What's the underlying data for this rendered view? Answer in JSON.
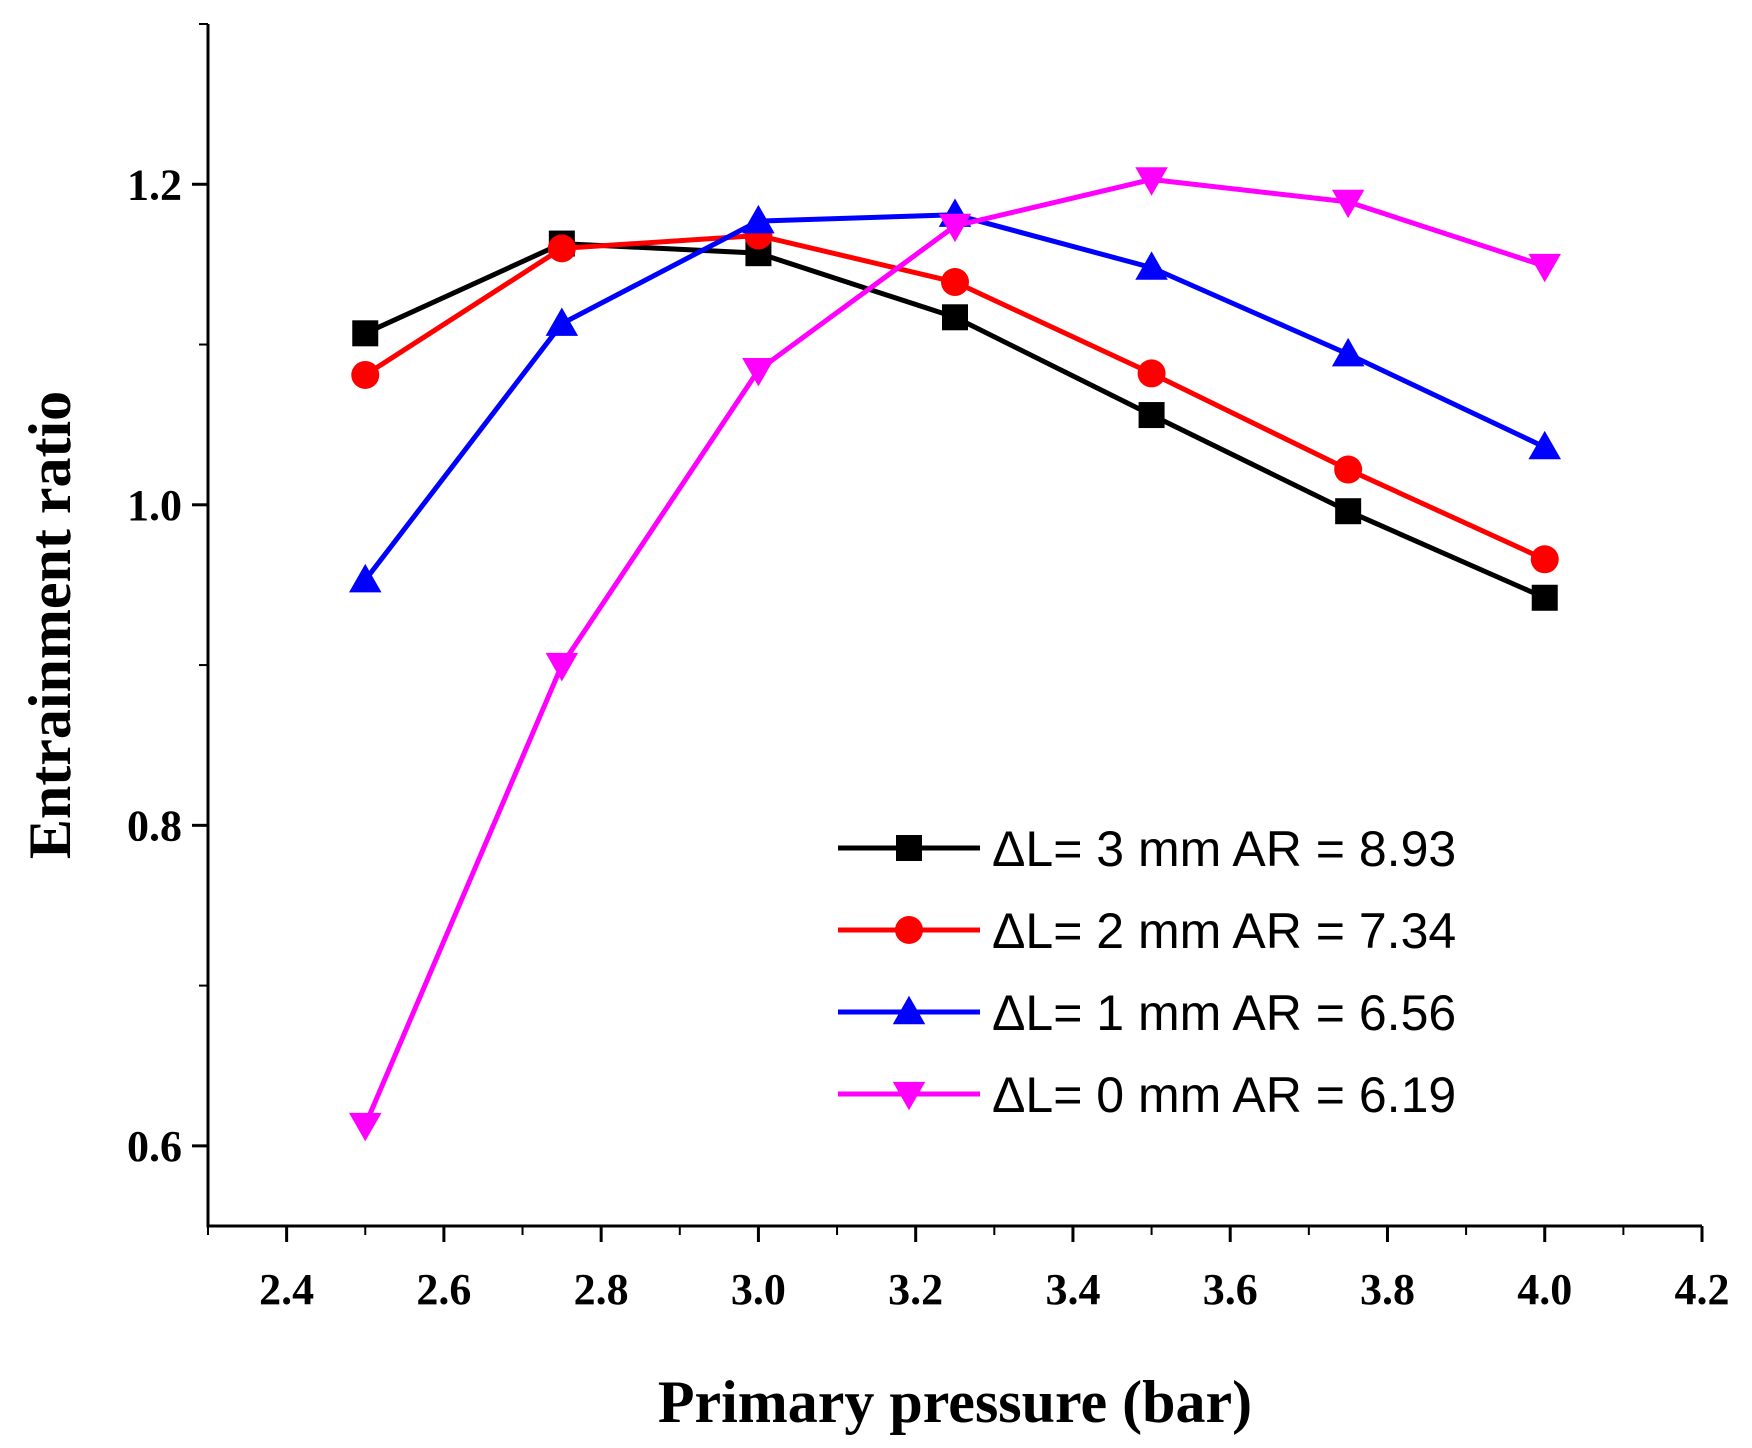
{
  "chart_data": {
    "type": "line",
    "title": "",
    "xlabel": "Primary pressure (bar)",
    "ylabel": "Entrainment ratio",
    "xlim": [
      2.3,
      4.2
    ],
    "ylim": [
      0.55,
      1.3
    ],
    "x_ticks": [
      2.4,
      2.6,
      2.8,
      3.0,
      3.2,
      3.4,
      3.6,
      3.8,
      4.0,
      4.2
    ],
    "x_tick_labels": [
      "2.4",
      "2.6",
      "2.8",
      "3.0",
      "3.2",
      "3.4",
      "3.6",
      "3.8",
      "4.0",
      "4.2"
    ],
    "y_ticks": [
      0.6,
      0.8,
      1.0,
      1.2
    ],
    "y_tick_labels": [
      "0.6",
      "0.8",
      "1.0",
      "1.2"
    ],
    "grid": false,
    "legend_position": "bottom-right",
    "x": [
      2.5,
      2.75,
      3.0,
      3.25,
      3.5,
      3.75,
      4.0
    ],
    "series": [
      {
        "name": "ΔL= 3 mm AR = 8.93",
        "color": "#000000",
        "marker": "square",
        "values": [
          1.107,
          1.163,
          1.157,
          1.117,
          1.056,
          0.996,
          0.942
        ]
      },
      {
        "name": "ΔL= 2 mm AR = 7.34",
        "color": "#ff0000",
        "marker": "circle",
        "values": [
          1.081,
          1.16,
          1.168,
          1.139,
          1.082,
          1.022,
          0.966
        ]
      },
      {
        "name": "ΔL= 1 mm AR = 6.56",
        "color": "#0000ff",
        "marker": "triangle-up",
        "values": [
          0.953,
          1.113,
          1.177,
          1.181,
          1.148,
          1.094,
          1.036
        ]
      },
      {
        "name": "ΔL= 0 mm AR = 6.19",
        "color": "#ff00ff",
        "marker": "triangle-down",
        "values": [
          0.613,
          0.9,
          1.084,
          1.174,
          1.203,
          1.189,
          1.149
        ]
      }
    ]
  }
}
